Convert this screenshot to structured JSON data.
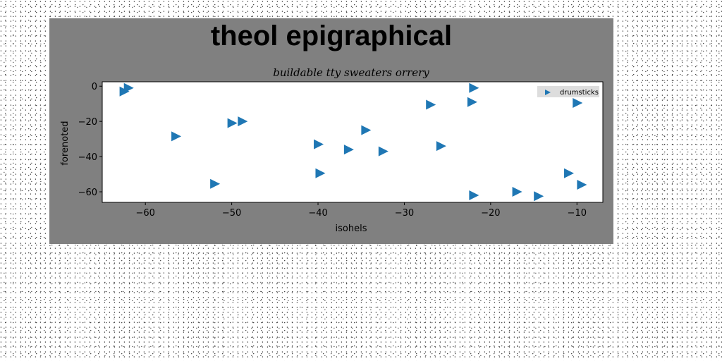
{
  "chart_data": {
    "type": "scatter",
    "title": "theol epigraphical",
    "subtitle": "buildable tty sweaters orrery",
    "xlabel": "isohels",
    "ylabel": "forenoted",
    "xlim": [
      -65,
      -7
    ],
    "ylim": [
      -66,
      2.5
    ],
    "xticks": [
      -60,
      -50,
      -40,
      -30,
      -20,
      -10
    ],
    "yticks": [
      0,
      -20,
      -40,
      -60
    ],
    "grid": false,
    "legend": {
      "position": "top-right",
      "entries": [
        "drumsticks"
      ]
    },
    "series": [
      {
        "name": "drumsticks",
        "marker": "triangle-right",
        "color": "#1f77b4",
        "points": [
          [
            -62,
            -1
          ],
          [
            -62.5,
            -3
          ],
          [
            -56.5,
            -28.5
          ],
          [
            -52,
            -55.5
          ],
          [
            -50,
            -21
          ],
          [
            -48.8,
            -20
          ],
          [
            -40,
            -33
          ],
          [
            -39.8,
            -49.5
          ],
          [
            -36.5,
            -36
          ],
          [
            -34.5,
            -25
          ],
          [
            -32.5,
            -37
          ],
          [
            -27,
            -10.5
          ],
          [
            -25.8,
            -34
          ],
          [
            -22,
            -1
          ],
          [
            -22.2,
            -9
          ],
          [
            -22,
            -62
          ],
          [
            -17,
            -60
          ],
          [
            -14.5,
            -62.5
          ],
          [
            -10,
            -9.5
          ],
          [
            -11,
            -49.5
          ],
          [
            -9.5,
            -56
          ]
        ]
      }
    ]
  }
}
